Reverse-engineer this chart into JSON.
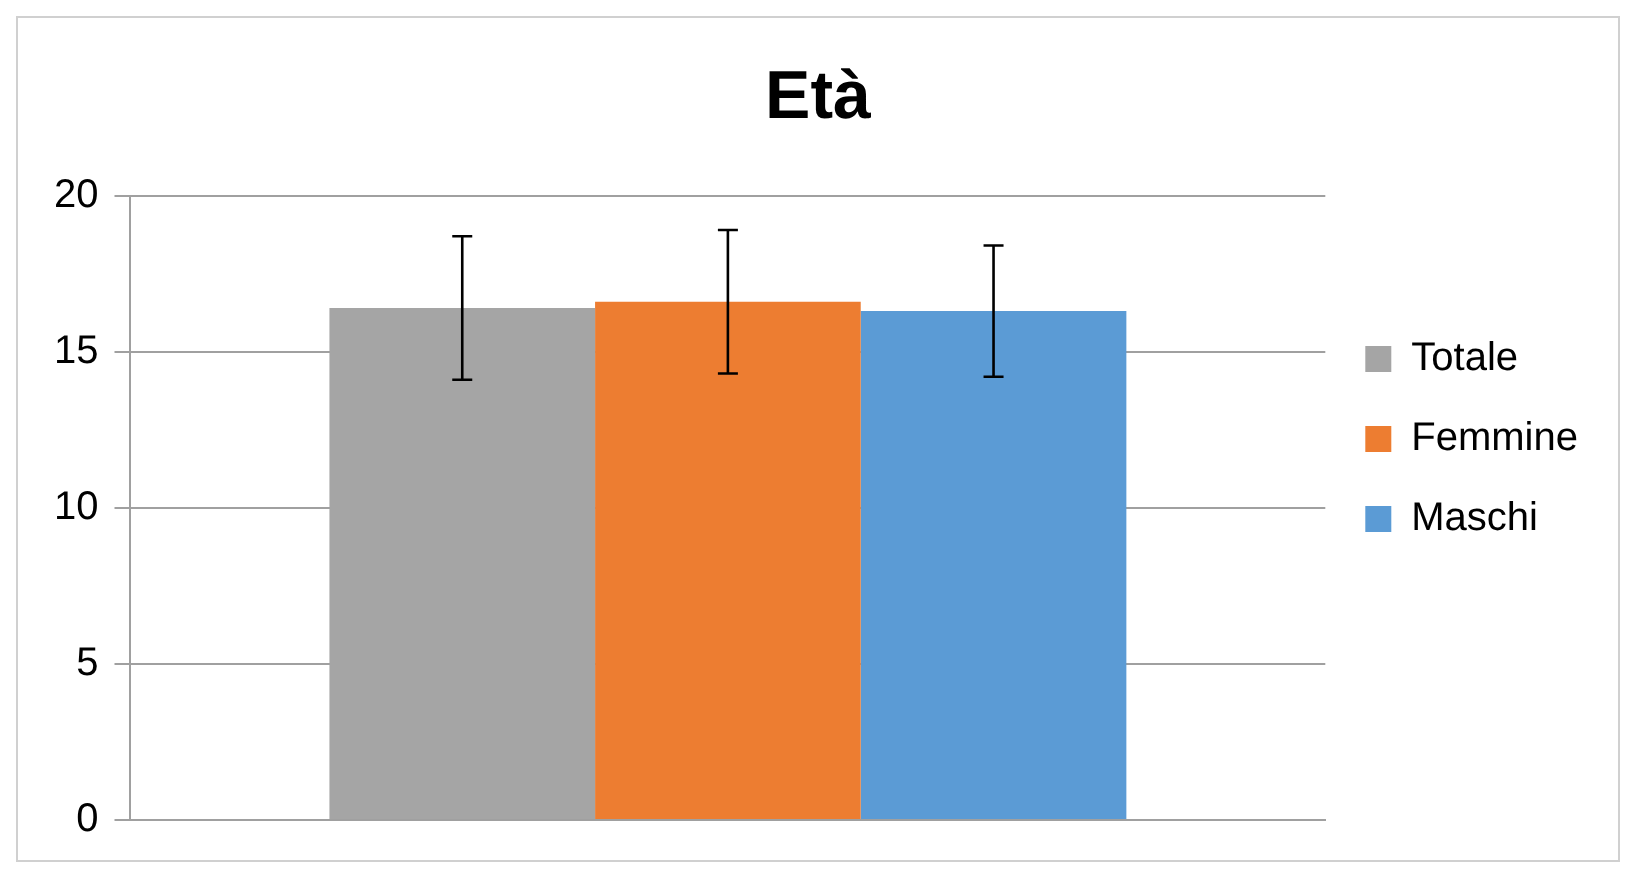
{
  "chart_data": {
    "type": "bar",
    "title": "Età",
    "categories": [
      null
    ],
    "series": [
      {
        "name": "Totale",
        "color": "#a5a5a5",
        "values": [
          16.4
        ],
        "errors": [
          [
            14.1,
            18.7
          ]
        ]
      },
      {
        "name": "Femmine",
        "color": "#ed7d31",
        "values": [
          16.6
        ],
        "errors": [
          [
            14.3,
            18.9
          ]
        ]
      },
      {
        "name": "Maschi",
        "color": "#5b9bd5",
        "values": [
          16.3
        ],
        "errors": [
          [
            14.2,
            18.4
          ]
        ]
      }
    ],
    "ylim": [
      0,
      20
    ],
    "yticks": [
      0,
      5,
      10,
      15,
      20
    ],
    "grid": "y",
    "legend": "right"
  }
}
